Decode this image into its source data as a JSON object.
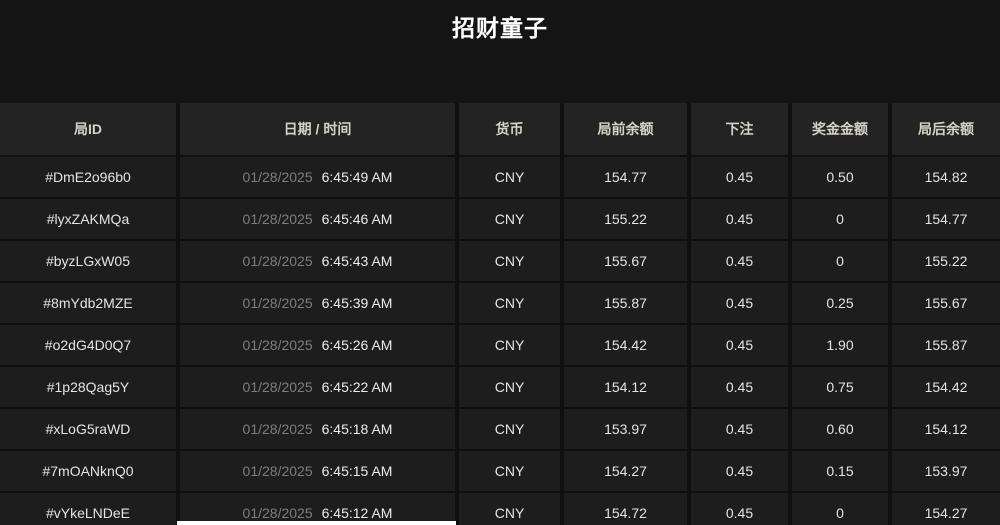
{
  "page": {
    "title": "招财童子"
  },
  "colors": {
    "page_background": "#141414",
    "header_cell_background": "#232323",
    "row_cell_background": "#1d1d1d",
    "header_text": "#d5d2c9",
    "cell_text": "#e4e4e4",
    "date_text": "#7d7d7d",
    "title_text": "#ffffff"
  },
  "table": {
    "columns": [
      {
        "key": "round_id",
        "label": "局ID"
      },
      {
        "key": "datetime",
        "label": "日期 / 时间"
      },
      {
        "key": "currency",
        "label": "货币"
      },
      {
        "key": "balance_before",
        "label": "局前余额"
      },
      {
        "key": "bet",
        "label": "下注"
      },
      {
        "key": "prize",
        "label": "奖金金额"
      },
      {
        "key": "balance_after",
        "label": "局后余额"
      }
    ],
    "rows": [
      {
        "round_id": "#DmE2o96b0",
        "date": "01/28/2025",
        "time": "6:45:49 AM",
        "currency": "CNY",
        "balance_before": "154.77",
        "bet": "0.45",
        "prize": "0.50",
        "balance_after": "154.82"
      },
      {
        "round_id": "#lyxZAKMQa",
        "date": "01/28/2025",
        "time": "6:45:46 AM",
        "currency": "CNY",
        "balance_before": "155.22",
        "bet": "0.45",
        "prize": "0",
        "balance_after": "154.77"
      },
      {
        "round_id": "#byzLGxW05",
        "date": "01/28/2025",
        "time": "6:45:43 AM",
        "currency": "CNY",
        "balance_before": "155.67",
        "bet": "0.45",
        "prize": "0",
        "balance_after": "155.22"
      },
      {
        "round_id": "#8mYdb2MZE",
        "date": "01/28/2025",
        "time": "6:45:39 AM",
        "currency": "CNY",
        "balance_before": "155.87",
        "bet": "0.45",
        "prize": "0.25",
        "balance_after": "155.67"
      },
      {
        "round_id": "#o2dG4D0Q7",
        "date": "01/28/2025",
        "time": "6:45:26 AM",
        "currency": "CNY",
        "balance_before": "154.42",
        "bet": "0.45",
        "prize": "1.90",
        "balance_after": "155.87"
      },
      {
        "round_id": "#1p28Qag5Y",
        "date": "01/28/2025",
        "time": "6:45:22 AM",
        "currency": "CNY",
        "balance_before": "154.12",
        "bet": "0.45",
        "prize": "0.75",
        "balance_after": "154.42"
      },
      {
        "round_id": "#xLoG5raWD",
        "date": "01/28/2025",
        "time": "6:45:18 AM",
        "currency": "CNY",
        "balance_before": "153.97",
        "bet": "0.45",
        "prize": "0.60",
        "balance_after": "154.12"
      },
      {
        "round_id": "#7mOANknQ0",
        "date": "01/28/2025",
        "time": "6:45:15 AM",
        "currency": "CNY",
        "balance_before": "154.27",
        "bet": "0.45",
        "prize": "0.15",
        "balance_after": "153.97"
      },
      {
        "round_id": "#vYkeLNDeE",
        "date": "01/28/2025",
        "time": "6:45:12 AM",
        "currency": "CNY",
        "balance_before": "154.72",
        "bet": "0.45",
        "prize": "0",
        "balance_after": "154.27"
      }
    ]
  }
}
